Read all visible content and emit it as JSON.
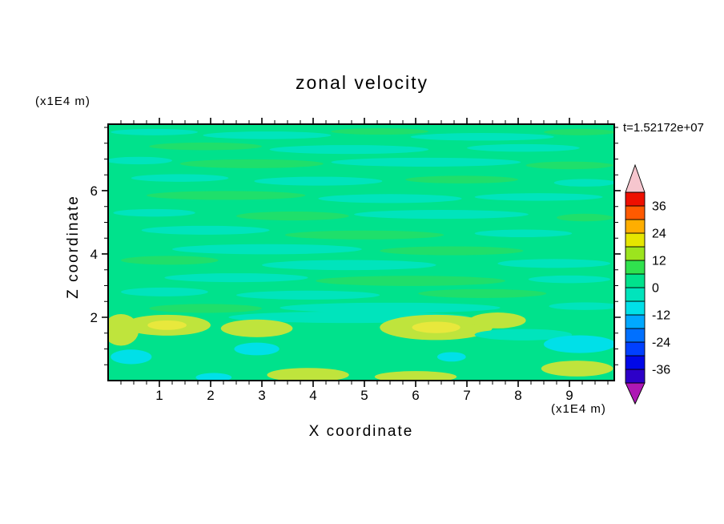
{
  "page": {
    "background": "#FFFFFF"
  },
  "chart_data": {
    "type": "heatmap",
    "variant": "filled_contour",
    "title": "zonal velocity",
    "time_annotation": "t=1.52172e+07",
    "xlabel": "X coordinate",
    "x_unit_label": "(x1E4 m)",
    "ylabel": "Z coordinate",
    "y_unit_label": "(x1E4 m)",
    "x_ticks": [
      1,
      2,
      3,
      4,
      5,
      6,
      7,
      8,
      9
    ],
    "x_minor_step": 0.25,
    "x_range": [
      0,
      9.875
    ],
    "y_ticks": [
      2,
      4,
      6
    ],
    "y_minor_step": 0.5,
    "y_range": [
      0,
      8.1
    ],
    "contour_interval": 6,
    "colorbar": {
      "tick_labels": [
        "36",
        "24",
        "12",
        "0",
        "-12",
        "-24",
        "-36"
      ],
      "tick_values": [
        36,
        24,
        12,
        0,
        -12,
        -24,
        -36
      ],
      "levels_min": -42,
      "levels_max": 42,
      "band_size": 6,
      "band_colors_bottom_to_top": [
        "#2D00C8",
        "#0008E8",
        "#0040FF",
        "#0070FF",
        "#00A8FF",
        "#00E0E8",
        "#00E4BC",
        "#00E28C",
        "#30E24E",
        "#9CE41E",
        "#E6E600",
        "#FFAE00",
        "#FF5A00",
        "#EE1000"
      ],
      "under_arrow_color": "#AE18B4",
      "over_arrow_color": "#F6C6CE"
    },
    "palette": {
      "base": "#00E28C",
      "a": "#00E4BC",
      "b": "#1FDF6B",
      "c": "#00E0E8",
      "y": "#BFE43C",
      "Y": "#E8E83C"
    },
    "features_format": "[x, z, rx, ry, band_key] in data coordinates",
    "features": [
      [
        0.9,
        7.85,
        0.85,
        0.1,
        "a"
      ],
      [
        3.1,
        7.75,
        1.25,
        0.12,
        "a"
      ],
      [
        5.3,
        7.87,
        0.95,
        0.1,
        "b"
      ],
      [
        7.3,
        7.7,
        1.4,
        0.12,
        "a"
      ],
      [
        9.2,
        7.85,
        0.7,
        0.1,
        "b"
      ],
      [
        1.9,
        7.4,
        1.1,
        0.12,
        "b"
      ],
      [
        4.7,
        7.3,
        1.55,
        0.14,
        "a"
      ],
      [
        8.1,
        7.35,
        1.1,
        0.12,
        "a"
      ],
      [
        0.6,
        6.95,
        0.65,
        0.12,
        "a"
      ],
      [
        2.8,
        6.85,
        1.4,
        0.14,
        "b"
      ],
      [
        6.2,
        6.9,
        1.85,
        0.14,
        "a"
      ],
      [
        9.0,
        6.8,
        0.85,
        0.12,
        "b"
      ],
      [
        1.4,
        6.4,
        0.95,
        0.12,
        "a"
      ],
      [
        4.1,
        6.3,
        1.25,
        0.14,
        "a"
      ],
      [
        6.9,
        6.35,
        1.1,
        0.12,
        "b"
      ],
      [
        9.3,
        6.25,
        0.6,
        0.12,
        "a"
      ],
      [
        2.3,
        5.85,
        1.55,
        0.14,
        "b"
      ],
      [
        5.5,
        5.75,
        1.4,
        0.14,
        "a"
      ],
      [
        8.4,
        5.8,
        1.25,
        0.12,
        "a"
      ],
      [
        0.9,
        5.3,
        0.8,
        0.12,
        "a"
      ],
      [
        3.6,
        5.2,
        1.1,
        0.14,
        "b"
      ],
      [
        6.5,
        5.25,
        1.7,
        0.14,
        "a"
      ],
      [
        9.3,
        5.15,
        0.55,
        0.12,
        "b"
      ],
      [
        1.9,
        4.75,
        1.25,
        0.14,
        "a"
      ],
      [
        5.0,
        4.6,
        1.55,
        0.14,
        "b"
      ],
      [
        8.1,
        4.65,
        0.95,
        0.12,
        "a"
      ],
      [
        3.1,
        4.15,
        1.85,
        0.16,
        "a"
      ],
      [
        6.7,
        4.1,
        1.4,
        0.14,
        "b"
      ],
      [
        1.2,
        3.8,
        0.95,
        0.14,
        "b"
      ],
      [
        4.7,
        3.65,
        1.7,
        0.16,
        "a"
      ],
      [
        8.7,
        3.7,
        1.1,
        0.14,
        "a"
      ],
      [
        2.5,
        3.25,
        1.4,
        0.14,
        "a"
      ],
      [
        5.9,
        3.15,
        1.85,
        0.16,
        "b"
      ],
      [
        9.0,
        3.2,
        0.8,
        0.12,
        "a"
      ],
      [
        1.1,
        2.8,
        0.85,
        0.14,
        "a"
      ],
      [
        3.9,
        2.7,
        1.4,
        0.14,
        "a"
      ],
      [
        7.3,
        2.75,
        1.25,
        0.14,
        "b"
      ],
      [
        5.5,
        2.3,
        2.15,
        0.16,
        "a"
      ],
      [
        1.9,
        2.28,
        1.1,
        0.14,
        "b"
      ],
      [
        9.3,
        2.35,
        0.7,
        0.12,
        "a"
      ],
      [
        4.7,
        2.0,
        2.35,
        0.18,
        "a"
      ],
      [
        1.15,
        1.75,
        0.85,
        0.33,
        "y"
      ],
      [
        1.15,
        1.75,
        0.38,
        0.15,
        "Y"
      ],
      [
        2.9,
        1.65,
        0.7,
        0.28,
        "y"
      ],
      [
        6.4,
        1.68,
        1.1,
        0.4,
        "y"
      ],
      [
        6.4,
        1.68,
        0.47,
        0.18,
        "Y"
      ],
      [
        7.6,
        1.9,
        0.55,
        0.25,
        "y"
      ],
      [
        0.25,
        1.6,
        0.35,
        0.5,
        "y"
      ],
      [
        9.15,
        0.38,
        0.7,
        0.25,
        "y"
      ],
      [
        3.9,
        0.18,
        0.8,
        0.22,
        "y"
      ],
      [
        6.0,
        0.12,
        0.8,
        0.18,
        "y"
      ],
      [
        8.1,
        1.45,
        0.95,
        0.18,
        "a"
      ],
      [
        2.9,
        1.0,
        0.44,
        0.2,
        "c"
      ],
      [
        9.2,
        1.15,
        0.7,
        0.28,
        "c"
      ],
      [
        0.45,
        0.75,
        0.4,
        0.23,
        "c"
      ],
      [
        2.06,
        0.1,
        0.35,
        0.14,
        "c"
      ],
      [
        6.7,
        0.75,
        0.28,
        0.15,
        "c"
      ]
    ]
  }
}
